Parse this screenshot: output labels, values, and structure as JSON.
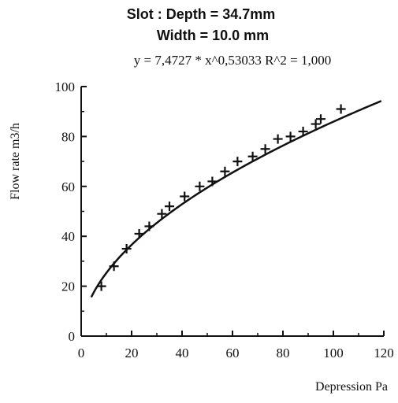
{
  "chart_data": {
    "type": "scatter",
    "title_line1": "Slot : Depth =  34.7mm",
    "title_line2": "Width = 10.0 mm",
    "equation": "y = 7,4727 * x^0,53033   R^2 = 1,000",
    "xlabel": "Depression  Pa",
    "ylabel": "Flow rate  m3/h",
    "xlim": [
      0,
      120
    ],
    "ylim": [
      0,
      100
    ],
    "xticks": [
      "0",
      "20",
      "40",
      "60",
      "80",
      "100",
      "120"
    ],
    "yticks": [
      "0",
      "20",
      "40",
      "60",
      "80",
      "100"
    ],
    "grid": false,
    "fit": {
      "a": 7.4727,
      "b": 0.53033,
      "x_range": [
        4,
        119
      ]
    },
    "series": [
      {
        "x": [
          8,
          13,
          18,
          23,
          27,
          32,
          35,
          41,
          47,
          52,
          57,
          62,
          68,
          73,
          78,
          83,
          88,
          93,
          95,
          103
        ],
        "y": [
          20,
          28,
          35,
          41,
          44,
          49,
          52,
          56,
          60,
          62,
          66,
          70,
          72,
          75,
          79,
          80,
          82,
          85,
          87,
          91
        ]
      }
    ],
    "colors": {
      "ink": "#111111"
    }
  }
}
